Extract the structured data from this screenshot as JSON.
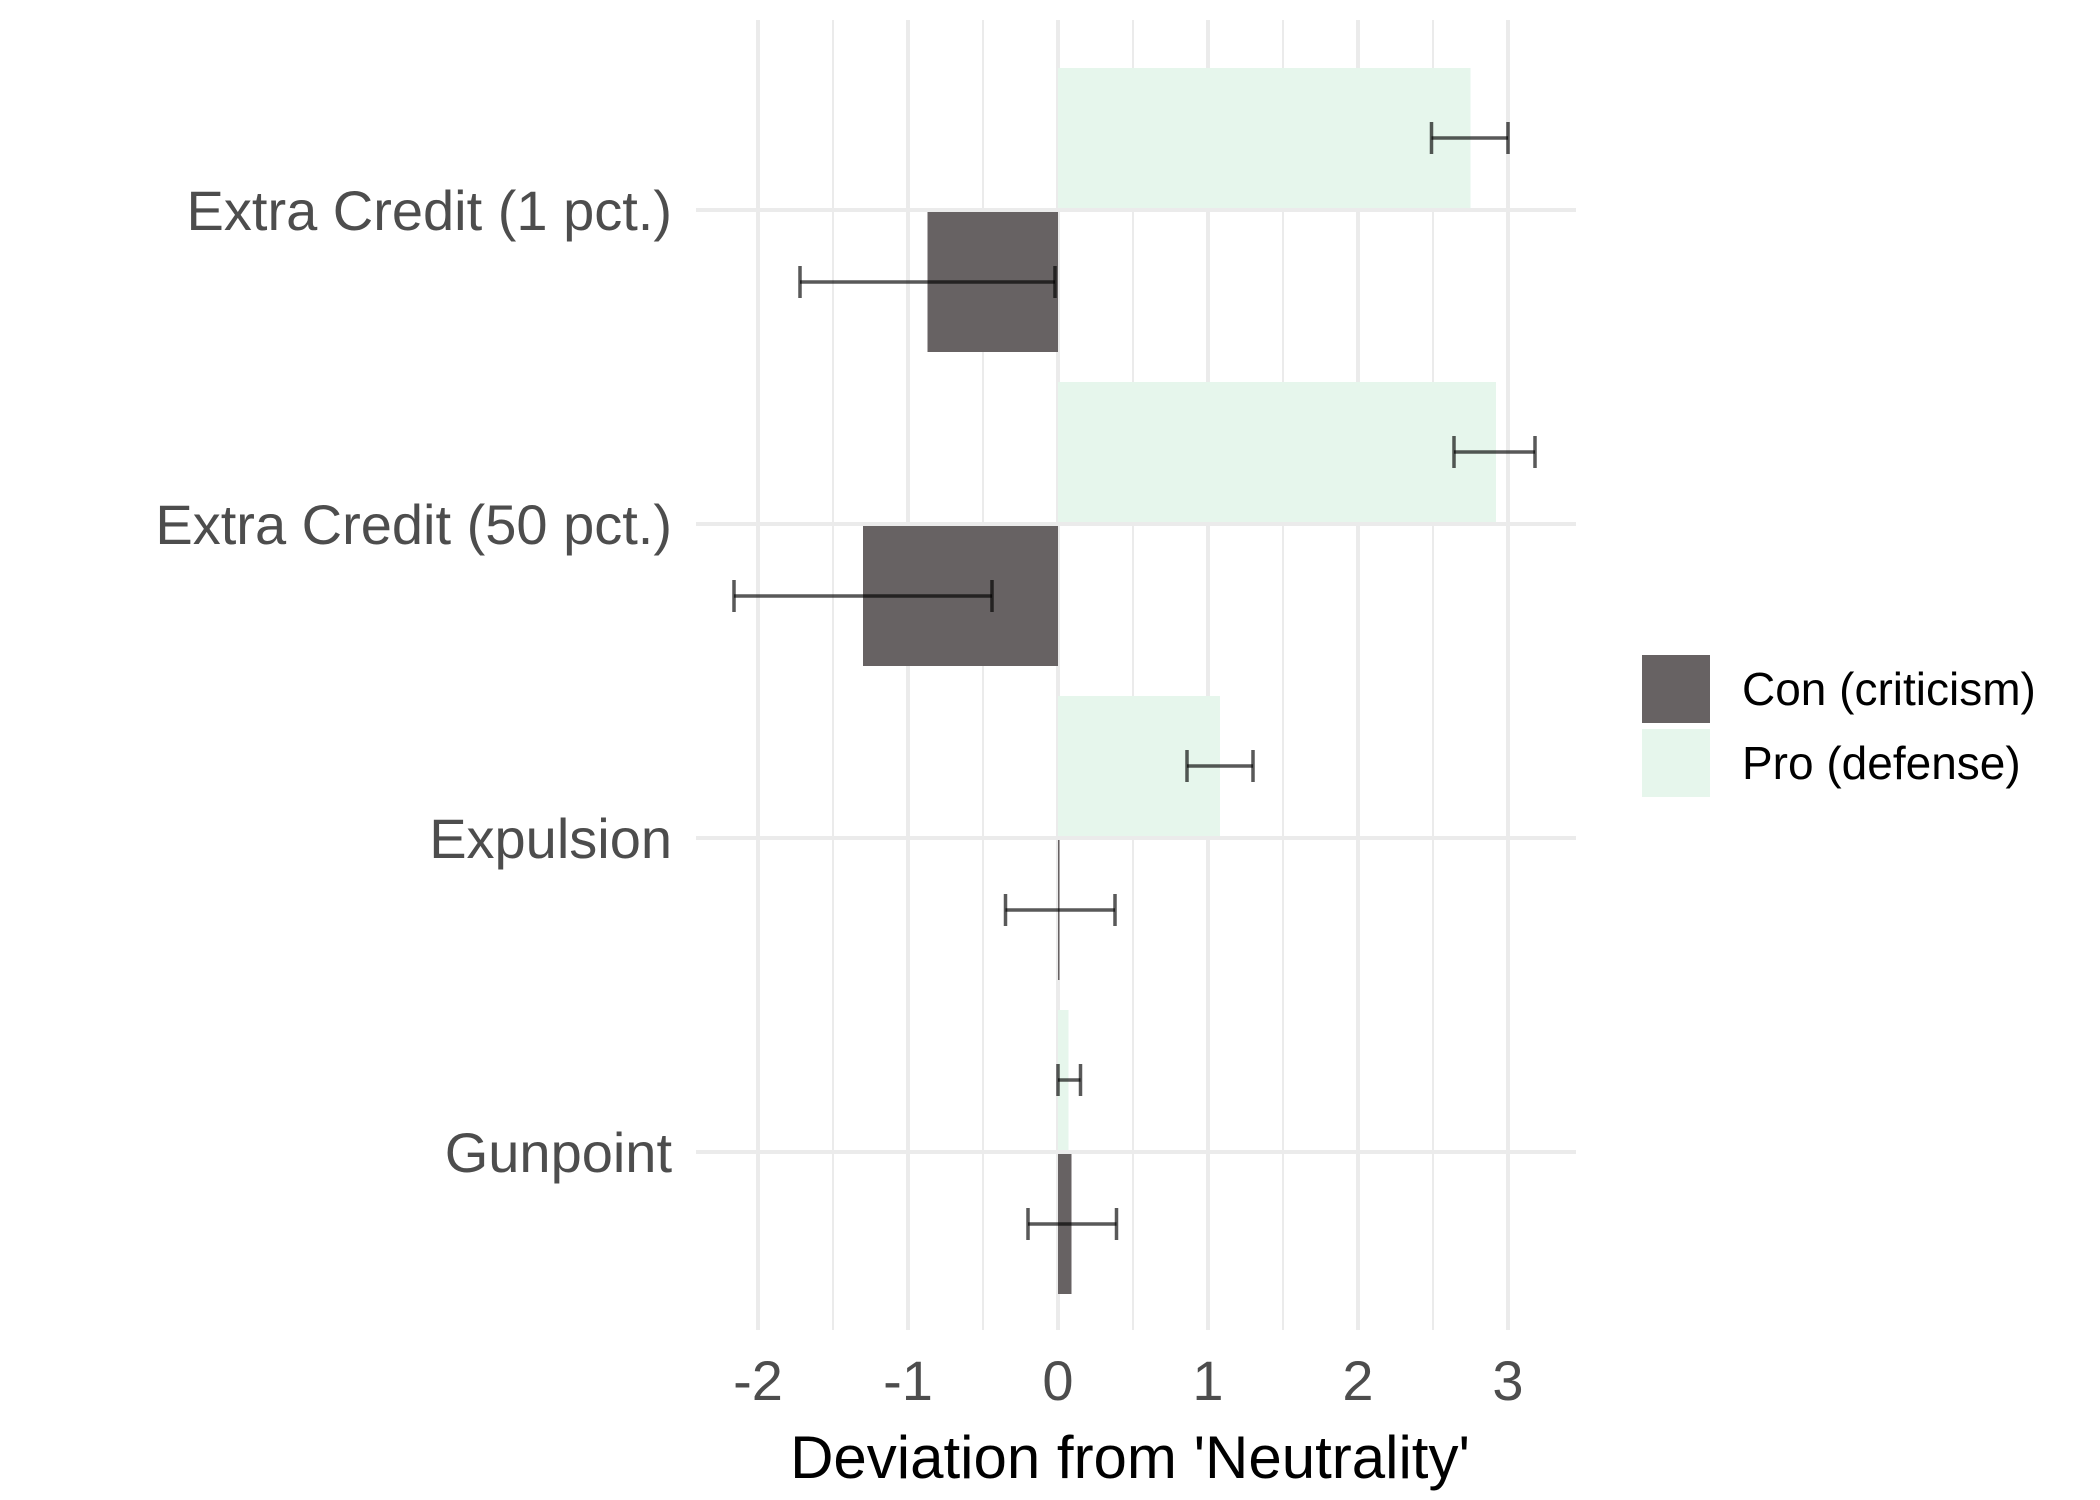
{
  "chart_data": {
    "type": "bar",
    "orientation": "horizontal",
    "categories": [
      "Extra Credit (1 pct.)",
      "Extra Credit (50 pct.)",
      "Expulsion",
      "Gunpoint"
    ],
    "series": [
      {
        "name": "Con (criticism)",
        "color": "#676263",
        "values": [
          -0.87,
          -1.3,
          0.0,
          0.09
        ],
        "error_low": [
          -1.72,
          -2.16,
          -0.35,
          -0.2
        ],
        "error_high": [
          -0.02,
          -0.44,
          0.38,
          0.39
        ]
      },
      {
        "name": "Pro (defense)",
        "color": "#e6f6ec",
        "values": [
          2.75,
          2.92,
          1.08,
          0.07
        ],
        "error_low": [
          2.49,
          2.64,
          0.86,
          0.0
        ],
        "error_high": [
          3.0,
          3.18,
          1.3,
          0.15
        ]
      }
    ],
    "xlabel": "Deviation from 'Neutrality'",
    "ylabel": "",
    "xlim": [
      -2.3,
      3.4
    ],
    "x_ticks": [
      "-2",
      "-1",
      "0",
      "1",
      "2",
      "3"
    ],
    "grid": true,
    "legend_position": "right"
  }
}
